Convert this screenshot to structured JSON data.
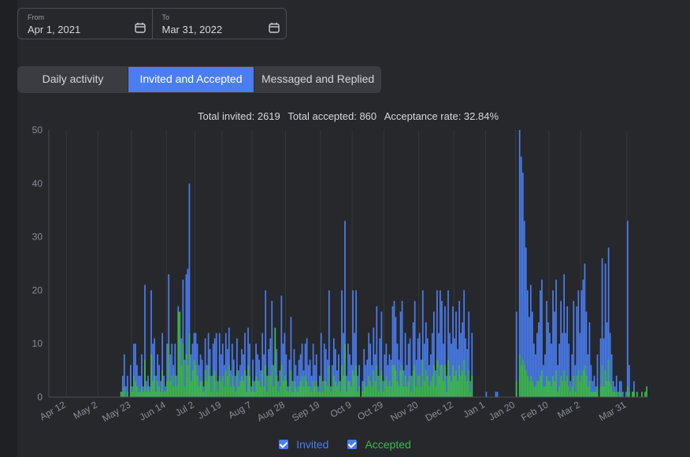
{
  "date_range": {
    "from_label": "From",
    "from_value": "Apr 1, 2021",
    "to_label": "To",
    "to_value": "Mar 31, 2022"
  },
  "tabs": [
    {
      "label": "Daily activity",
      "active": false
    },
    {
      "label": "Invited and Accepted",
      "active": true
    },
    {
      "label": "Messaged and Replied",
      "active": false
    }
  ],
  "summary": {
    "invited": "Total invited: 2619",
    "accepted": "Total accepted: 860",
    "rate": "Acceptance rate: 32.84%"
  },
  "colors": {
    "invited": "#4a7df0",
    "accepted": "#3dbb4a",
    "grid": "#35373c",
    "axis_text": "#8a8f96"
  },
  "chart_data": {
    "type": "bar",
    "ylim": [
      0,
      50
    ],
    "yticks": [
      0,
      10,
      20,
      30,
      40,
      50
    ],
    "xtick_labels": [
      "Apr 12",
      "May 2",
      "May 23",
      "Jun 14",
      "Jul 2",
      "Jul 19",
      "Aug 7",
      "Aug 28",
      "Sep 19",
      "Oct 9",
      "Oct 29",
      "Nov 20",
      "Dec 12",
      "Jan 1",
      "Jan 20",
      "Feb 10",
      "Mar 2",
      "Mar 31"
    ],
    "xtick_day_index": [
      11,
      31,
      52,
      74,
      92,
      109,
      128,
      149,
      171,
      191,
      211,
      233,
      255,
      275,
      294,
      315,
      335,
      364
    ],
    "series": [
      {
        "name": "Invited",
        "values": [
          0,
          0,
          0,
          0,
          0,
          0,
          0,
          0,
          0,
          0,
          0,
          0,
          0,
          0,
          0,
          0,
          0,
          0,
          0,
          0,
          0,
          0,
          0,
          0,
          0,
          0,
          0,
          0,
          0,
          0,
          0,
          0,
          0,
          0,
          0,
          0,
          0,
          0,
          0,
          0,
          0,
          0,
          0,
          0,
          0,
          1,
          4,
          8,
          2,
          4,
          0,
          6,
          2,
          10,
          10,
          6,
          4,
          4,
          8,
          2,
          21,
          3,
          4,
          2,
          20,
          10,
          11,
          4,
          8,
          6,
          3,
          12,
          4,
          2,
          10,
          23,
          8,
          10,
          6,
          10,
          4,
          17,
          12,
          11,
          22,
          7,
          23,
          24,
          40,
          8,
          10,
          12,
          12,
          10,
          6,
          8,
          7,
          2,
          11,
          6,
          12,
          9,
          4,
          10,
          11,
          12,
          3,
          12,
          8,
          10,
          6,
          12,
          9,
          13,
          5,
          10,
          7,
          4,
          11,
          5,
          6,
          9,
          8,
          12,
          4,
          13,
          10,
          2,
          7,
          3,
          10,
          8,
          7,
          5,
          12,
          8,
          20,
          4,
          9,
          11,
          18,
          6,
          10,
          9,
          3,
          5,
          19,
          10,
          12,
          8,
          2,
          7,
          15,
          3,
          9,
          6,
          4,
          7,
          8,
          10,
          5,
          10,
          11,
          6,
          7,
          4,
          10,
          6,
          8,
          2,
          4,
          12,
          3,
          10,
          9,
          7,
          20,
          2,
          6,
          11,
          9,
          5,
          8,
          3,
          20,
          12,
          33,
          4,
          10,
          8,
          6,
          20,
          12,
          20,
          4,
          6,
          0,
          3,
          9,
          6,
          7,
          12,
          10,
          6,
          13,
          8,
          17,
          4,
          11,
          16,
          3,
          8,
          10,
          6,
          8,
          7,
          17,
          18,
          15,
          10,
          7,
          16,
          18,
          5,
          12,
          6,
          10,
          11,
          4,
          14,
          18,
          7,
          11,
          12,
          7,
          20,
          10,
          14,
          11,
          6,
          8,
          12,
          16,
          5,
          20,
          12,
          20,
          18,
          10,
          17,
          4,
          20,
          12,
          10,
          17,
          11,
          16,
          9,
          18,
          12,
          14,
          20,
          11,
          9,
          16,
          3,
          12,
          0,
          0,
          0,
          0,
          0,
          0,
          0,
          0,
          1,
          0,
          0,
          0,
          0,
          0,
          1,
          1,
          0,
          0,
          0,
          0,
          0,
          0,
          0,
          0,
          0,
          0,
          0,
          16,
          0,
          50,
          45,
          42,
          33,
          28,
          20,
          15,
          21,
          16,
          10,
          8,
          12,
          14,
          20,
          22,
          6,
          8,
          18,
          14,
          12,
          10,
          20,
          16,
          22,
          6,
          10,
          18,
          12,
          23,
          12,
          17,
          10,
          3,
          8,
          18,
          6,
          17,
          20,
          12,
          20,
          22,
          25,
          16,
          8,
          14,
          6,
          3,
          4,
          2,
          8,
          0,
          11,
          26,
          11,
          25,
          14,
          28,
          12,
          8,
          3,
          2,
          4,
          1,
          3,
          3,
          1,
          0,
          1,
          33,
          6,
          0,
          1,
          3,
          0,
          0,
          0,
          0,
          0,
          0,
          0,
          0
        ],
        "color": "#4a7df0"
      },
      {
        "name": "Accepted",
        "values": [
          0,
          0,
          0,
          0,
          0,
          0,
          0,
          0,
          0,
          0,
          0,
          0,
          0,
          0,
          0,
          0,
          0,
          0,
          0,
          0,
          0,
          0,
          0,
          0,
          0,
          0,
          0,
          0,
          0,
          0,
          0,
          0,
          0,
          0,
          0,
          0,
          0,
          0,
          0,
          0,
          0,
          0,
          0,
          0,
          0,
          1,
          1,
          2,
          0,
          1,
          0,
          2,
          1,
          4,
          3,
          2,
          1,
          1,
          2,
          1,
          7,
          1,
          2,
          1,
          8,
          3,
          4,
          1,
          3,
          2,
          1,
          5,
          1,
          1,
          3,
          10,
          3,
          4,
          2,
          4,
          2,
          16,
          16,
          6,
          10,
          2,
          8,
          6,
          12,
          3,
          5,
          7,
          6,
          4,
          2,
          3,
          3,
          1,
          5,
          3,
          6,
          4,
          1,
          4,
          5,
          3,
          1,
          4,
          3,
          4,
          2,
          5,
          4,
          6,
          2,
          4,
          2,
          1,
          5,
          2,
          3,
          4,
          3,
          5,
          1,
          6,
          4,
          1,
          3,
          1,
          4,
          3,
          3,
          2,
          5,
          2,
          6,
          1,
          4,
          4,
          6,
          2,
          13,
          4,
          1,
          2,
          6,
          3,
          4,
          3,
          1,
          2,
          5,
          1,
          3,
          2,
          1,
          2,
          3,
          4,
          2,
          4,
          3,
          2,
          2,
          1,
          3,
          2,
          3,
          1,
          1,
          4,
          1,
          3,
          3,
          2,
          6,
          1,
          2,
          4,
          3,
          2,
          3,
          1,
          6,
          4,
          10,
          1,
          3,
          3,
          2,
          5,
          4,
          6,
          1,
          2,
          0,
          1,
          3,
          2,
          2,
          4,
          3,
          2,
          5,
          3,
          6,
          1,
          4,
          5,
          1,
          3,
          4,
          2,
          3,
          2,
          6,
          6,
          5,
          3,
          2,
          5,
          6,
          2,
          4,
          2,
          3,
          4,
          1,
          5,
          6,
          2,
          4,
          4,
          2,
          7,
          3,
          5,
          4,
          2,
          3,
          4,
          6,
          2,
          7,
          4,
          6,
          6,
          3,
          6,
          1,
          7,
          4,
          3,
          6,
          4,
          5,
          3,
          6,
          4,
          5,
          7,
          4,
          3,
          5,
          1,
          4,
          0,
          0,
          0,
          0,
          0,
          0,
          0,
          0,
          0,
          0,
          0,
          0,
          0,
          0,
          0,
          0,
          0,
          0,
          0,
          0,
          0,
          0,
          0,
          0,
          0,
          0,
          0,
          3,
          0,
          8,
          6,
          7,
          6,
          5,
          4,
          3,
          4,
          3,
          2,
          2,
          3,
          3,
          4,
          5,
          2,
          2,
          4,
          3,
          3,
          2,
          4,
          3,
          5,
          1,
          2,
          4,
          3,
          5,
          3,
          4,
          2,
          1,
          2,
          4,
          1,
          4,
          5,
          3,
          4,
          5,
          6,
          4,
          2,
          3,
          1,
          1,
          1,
          1,
          2,
          0,
          2,
          6,
          2,
          5,
          3,
          7,
          3,
          2,
          1,
          1,
          1,
          0,
          1,
          1,
          0,
          0,
          0,
          2,
          1,
          0,
          1,
          1,
          0,
          1,
          0,
          0,
          1,
          0,
          1,
          2
        ],
        "color": "#3dbb4a"
      }
    ],
    "legend": [
      {
        "label": "Invited",
        "color": "#4a7df0"
      },
      {
        "label": "Accepted",
        "color": "#3dbb4a"
      }
    ],
    "legend_position": "bottom-center",
    "grid": true
  }
}
